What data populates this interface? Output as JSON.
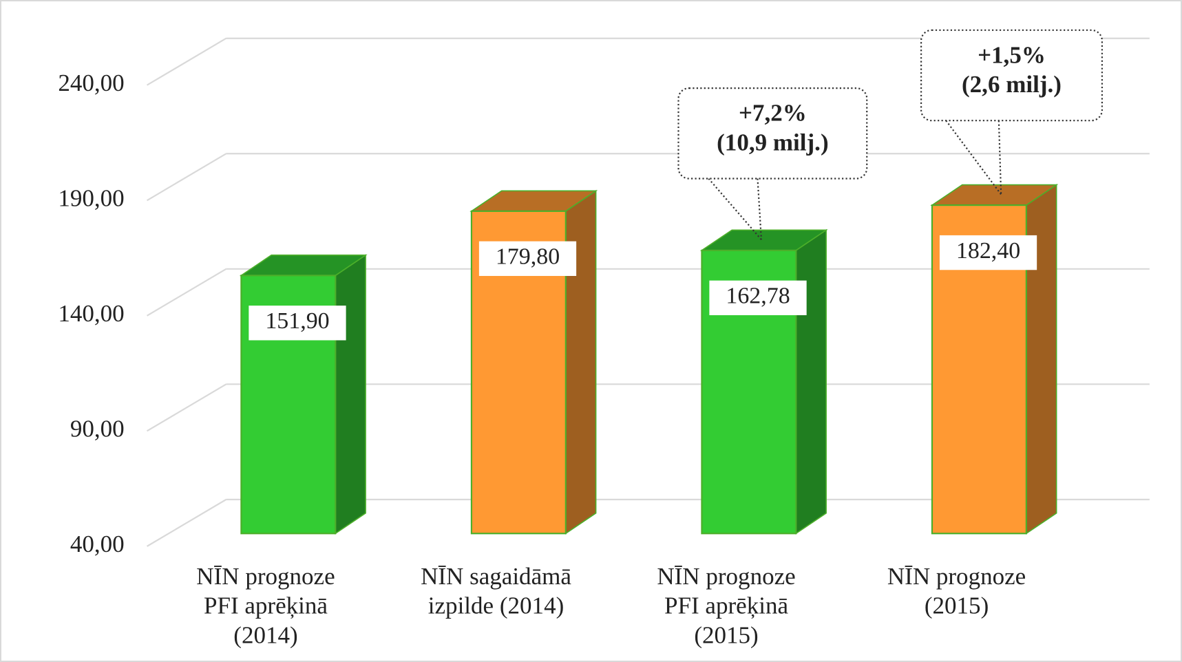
{
  "chart_data": {
    "type": "bar3d",
    "categories": [
      [
        "NĪN prognoze",
        "PFI aprēķinā",
        "(2014)"
      ],
      [
        "NĪN sagaidāmā",
        "izpilde  (2014)"
      ],
      [
        "NĪN prognoze",
        "PFI aprēķinā",
        "(2015)"
      ],
      [
        "NĪN prognoze",
        "(2015)"
      ]
    ],
    "values": [
      151.9,
      179.8,
      162.78,
      182.4
    ],
    "value_labels": [
      "151,90",
      "179,80",
      "162,78",
      "182,40"
    ],
    "colors": [
      "#33cc33",
      "#ff9933",
      "#33cc33",
      "#ff9933"
    ],
    "ylim": [
      40,
      240
    ],
    "yticks": [
      {
        "value": 40,
        "label": "40,00"
      },
      {
        "value": 90,
        "label": "90,00"
      },
      {
        "value": 140,
        "label": "140,00"
      },
      {
        "value": 190,
        "label": "190,00"
      },
      {
        "value": 240,
        "label": "240,00"
      }
    ],
    "grid": true,
    "annotations": [
      {
        "lines": [
          "+7,2%",
          "(10,9 milj.)"
        ]
      },
      {
        "lines": [
          "+1,5%",
          "(2,6 milj.)"
        ]
      }
    ]
  }
}
